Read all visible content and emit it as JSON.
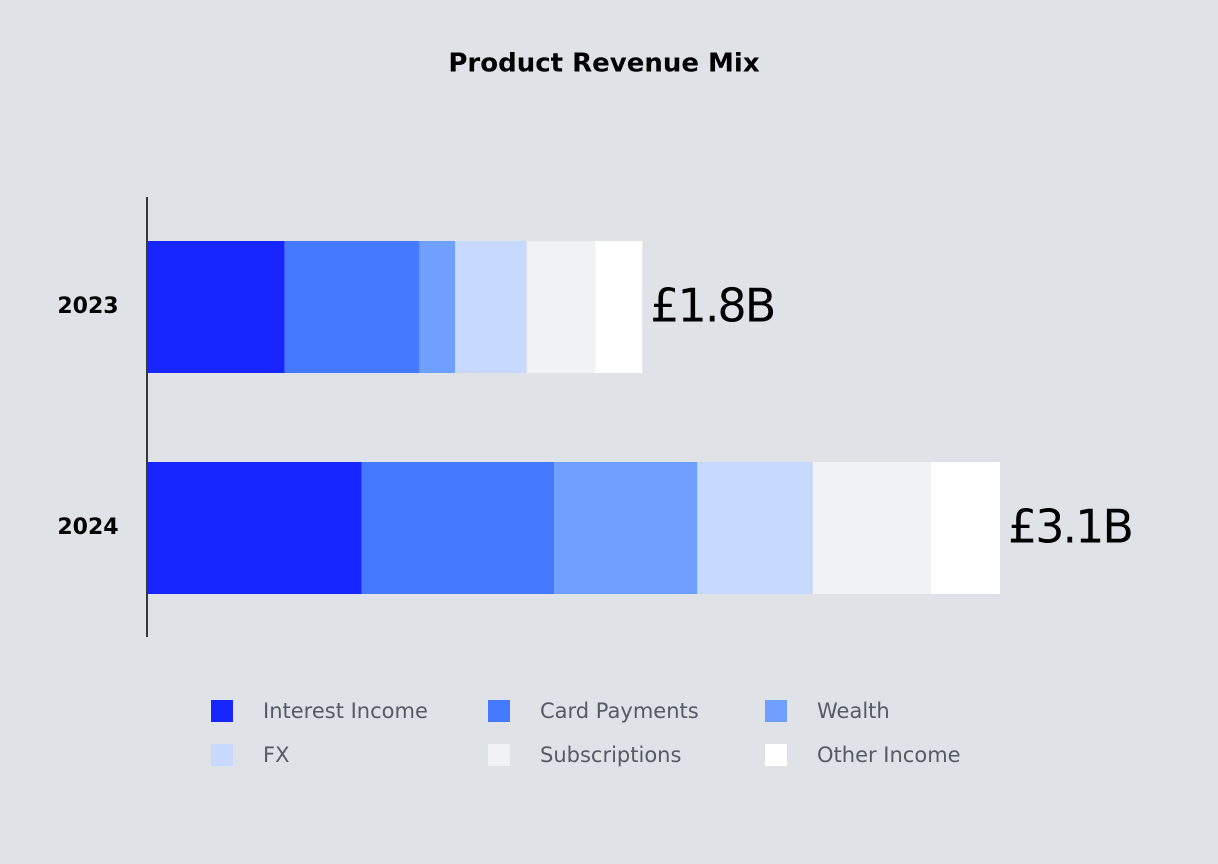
{
  "chart_data": {
    "type": "stacked-bar-horizontal",
    "title": "Product Revenue Mix",
    "categories": [
      "2023",
      "2024"
    ],
    "series": [
      {
        "name": "Interest Income",
        "color": "#1726ff",
        "values": [
          0.5,
          0.78
        ]
      },
      {
        "name": "Card Payments",
        "color": "#4579ff",
        "values": [
          0.49,
          0.7
        ]
      },
      {
        "name": "Wealth",
        "color": "#6f9fff",
        "values": [
          0.13,
          0.52
        ]
      },
      {
        "name": "FX",
        "color": "#c8d9ff",
        "values": [
          0.26,
          0.42
        ]
      },
      {
        "name": "Subscriptions",
        "color": "#f1f2f4",
        "values": [
          0.25,
          0.43
        ]
      },
      {
        "name": "Other Income",
        "color": "#ffffff",
        "values": [
          0.17,
          0.25
        ]
      }
    ],
    "totals": {
      "values": [
        1.8,
        3.1
      ],
      "value_labels": [
        "£1.8B",
        "£3.1B"
      ]
    },
    "legend": "bottom"
  }
}
